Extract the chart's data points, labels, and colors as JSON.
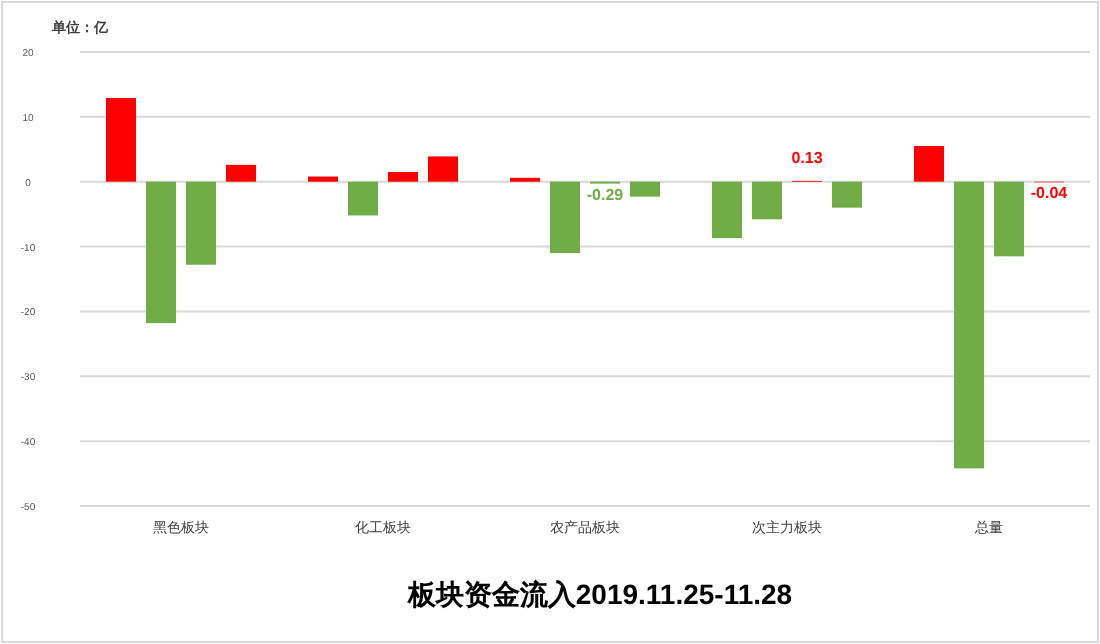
{
  "chart_data": {
    "type": "bar",
    "title": "板块资金流入2019.11.25-11.28",
    "ylabel": "单位：亿",
    "categories": [
      "黑色板块",
      "化工板块",
      "农产品板块",
      "次主力板块",
      "总量"
    ],
    "series": [
      {
        "colors": [
          "#ff0000",
          "#ff0000",
          "#ff0000",
          "#70ad47",
          "#ff0000"
        ],
        "values": [
          12.9,
          0.8,
          0.6,
          -8.7,
          5.5
        ]
      },
      {
        "colors": [
          "#70ad47",
          "#70ad47",
          "#70ad47",
          "#70ad47",
          "#70ad47"
        ],
        "values": [
          -21.8,
          -5.2,
          -11,
          -5.8,
          -44.2
        ]
      },
      {
        "colors": [
          "#70ad47",
          "#ff0000",
          "#70ad47",
          "#ff0000",
          "#70ad47"
        ],
        "values": [
          -12.8,
          1.5,
          -0.29,
          0.13,
          -11.5
        ],
        "value_labels": [
          null,
          null,
          "-0.29",
          "0.13",
          null
        ]
      },
      {
        "colors": [
          "#ff0000",
          "#ff0000",
          "#70ad47",
          "#70ad47",
          "#ff0000"
        ],
        "values": [
          2.6,
          3.9,
          -2.3,
          -4,
          -0.04
        ],
        "value_labels": [
          null,
          null,
          null,
          null,
          "-0.04"
        ]
      }
    ],
    "ylim": [
      -50,
      20
    ],
    "yticks": [
      20,
      10,
      0,
      -10,
      -20,
      -30,
      -40,
      -50
    ],
    "grid": "y"
  }
}
